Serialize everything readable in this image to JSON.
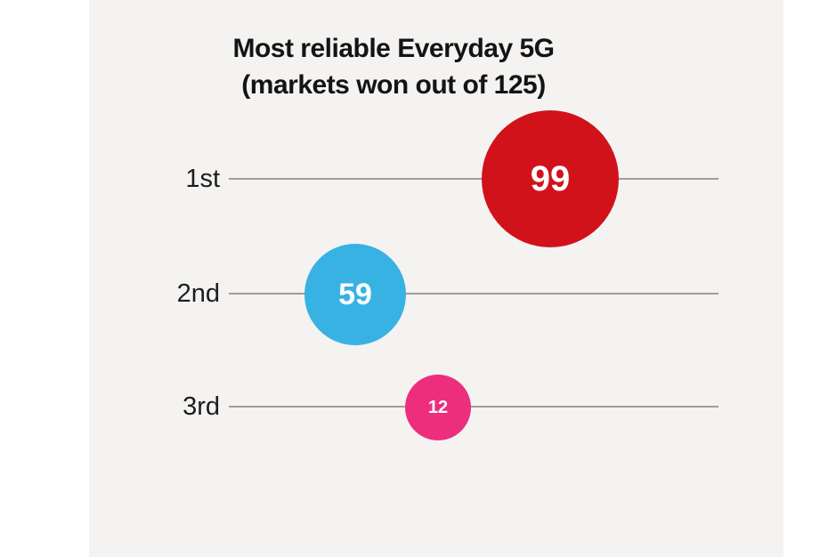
{
  "page": {
    "background": "#ffffff",
    "panel_background": "#f4f3f1"
  },
  "chart_data": {
    "type": "scatter",
    "variant": "bubble-ranking-dot-plot",
    "title": "Most reliable Everyday 5G",
    "subtitle": "(markets won out of 125)",
    "max_value": 125,
    "categories": [
      "1st",
      "2nd",
      "3rd"
    ],
    "values": [
      99,
      59,
      12
    ],
    "rows": [
      {
        "rank": "1st",
        "value": 99,
        "color": "#d2121b"
      },
      {
        "rank": "2nd",
        "value": 59,
        "color": "#38b2e3"
      },
      {
        "rank": "3rd",
        "value": 12,
        "color": "#ed2e7c"
      }
    ],
    "line_color": "#9e9e9e",
    "label_color": "#1d1d1d",
    "title_color": "#141414",
    "value_text_color": "#ffffff",
    "legend": "none",
    "grid": "off",
    "axis_ticks": "none"
  }
}
